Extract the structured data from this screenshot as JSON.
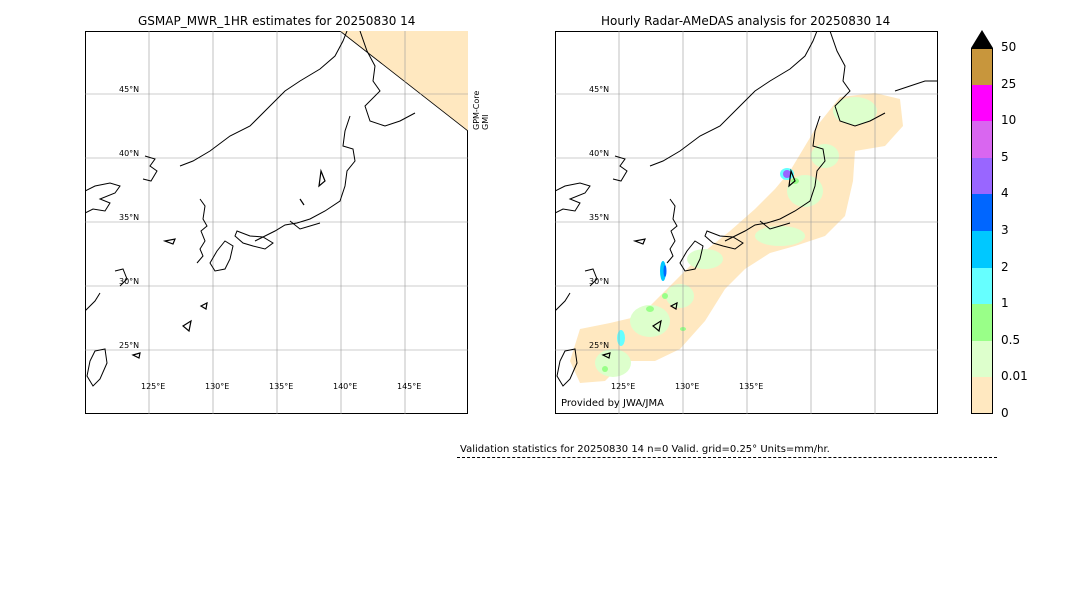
{
  "left_panel": {
    "title": "GSMAP_MWR_1HR estimates for 20250830 14",
    "lat_labels": [
      "45°N",
      "40°N",
      "35°N",
      "30°N",
      "25°N"
    ],
    "lon_labels": [
      "125°E",
      "130°E",
      "135°E",
      "140°E",
      "145°E"
    ],
    "satellite_label_1": "GPM-Core",
    "satellite_label_2": "GMI"
  },
  "right_panel": {
    "title": "Hourly Radar-AMeDAS analysis for 20250830 14",
    "lat_labels": [
      "45°N",
      "40°N",
      "35°N",
      "30°N",
      "25°N"
    ],
    "lon_labels": [
      "125°E",
      "130°E",
      "135°E"
    ],
    "provider": "Provided by JWA/JMA"
  },
  "colorbar": {
    "labels": [
      "50",
      "25",
      "10",
      "5",
      "4",
      "3",
      "2",
      "1",
      "0.5",
      "0.01",
      "0"
    ],
    "colors": [
      "#c8963c",
      "#ff00ff",
      "#d966f0",
      "#9966ff",
      "#0066ff",
      "#00c8ff",
      "#66ffff",
      "#99ff88",
      "#ddffcc",
      "#ffe8c0"
    ],
    "extend_color": "#000000",
    "no_data_color": "#ffe8c0"
  },
  "validation": {
    "text": "Validation statistics for 20250830 14  n=0 Valid. grid=0.25° Units=mm/hr."
  }
}
